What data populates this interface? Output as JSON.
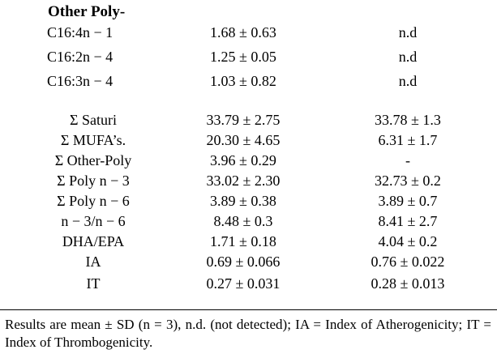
{
  "table": {
    "section_heading": "Other Poly-",
    "rows_top": [
      {
        "label": "C16:4n − 1",
        "v1": "1.68 ± 0.63",
        "v2": "n.d"
      },
      {
        "label": "C16:2n − 4",
        "v1": "1.25 ± 0.05",
        "v2": "n.d"
      },
      {
        "label": "C16:3n − 4",
        "v1": "1.03 ± 0.82",
        "v2": "n.d"
      }
    ],
    "rows_bottom": [
      {
        "label": "Σ Saturi",
        "v1": "33.79 ± 2.75",
        "v2": "33.78 ± 1.3"
      },
      {
        "label": "Σ MUFA’s.",
        "v1": "20.30 ± 4.65",
        "v2": "6.31 ± 1.7"
      },
      {
        "label": "Σ Other-Poly",
        "v1": "3.96 ± 0.29",
        "v2": "-"
      },
      {
        "label": "Σ Poly n − 3",
        "v1": "33.02 ± 2.30",
        "v2": "32.73 ± 0.2"
      },
      {
        "label": "Σ Poly n − 6",
        "v1": "3.89 ± 0.38",
        "v2": "3.89 ± 0.7"
      },
      {
        "label": "n − 3/n − 6",
        "v1": "8.48 ± 0.3",
        "v2": "8.41 ± 2.7"
      },
      {
        "label": "DHA/EPA",
        "v1": "1.71 ± 0.18",
        "v2": "4.04 ± 0.2"
      },
      {
        "label": "IA",
        "v1": "0.69 ± 0.066",
        "v2": "0.76 ± 0.022"
      },
      {
        "label": "IT",
        "v1": "0.27 ± 0.031",
        "v2": "0.28 ± 0.013"
      }
    ]
  },
  "footnote": "Results are mean ± SD (n = 3), n.d. (not detected); IA = Index of Atherogenicity; IT = Index of Thrombogenicity."
}
